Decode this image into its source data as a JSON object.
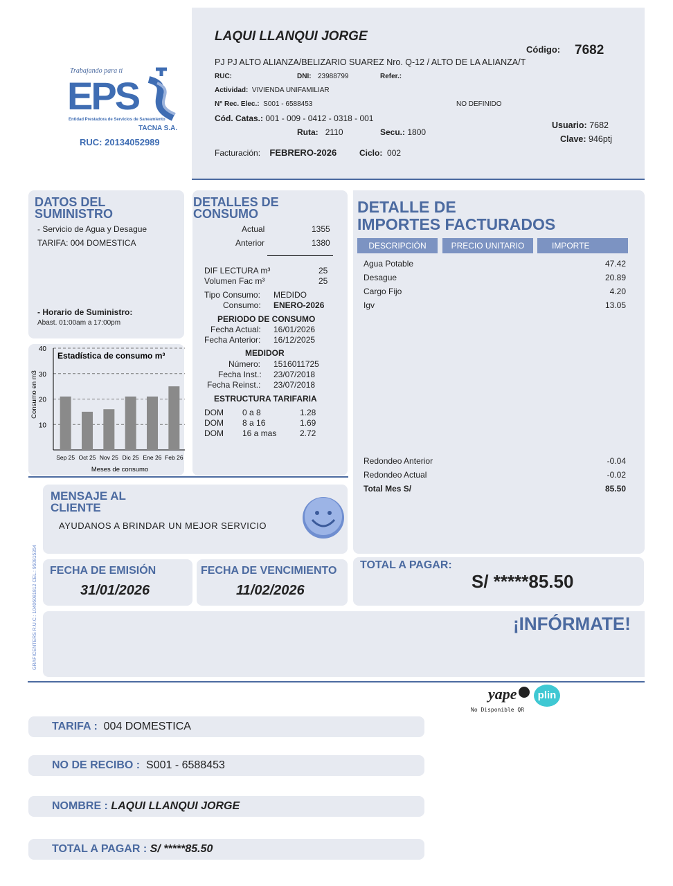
{
  "logo": {
    "tagline": "Trabajando para ti",
    "name": "EPS",
    "subtitle": "Entidad Prestadora de Servicios de Saneamiento",
    "company": "TACNA S.A.",
    "ruc": "RUC: 20134052989"
  },
  "header": {
    "client": "LAQUI LLANQUI JORGE",
    "codigo_label": "Código:",
    "codigo": "7682",
    "address": "PJ PJ ALTO ALIANZA/BELIZARIO SUAREZ Nro. Q-12 / ALTO DE LA ALIANZA/T",
    "ruc_label": "RUC:",
    "dni_label": "DNI:",
    "dni": "23988799",
    "refer_label": "Refer.:",
    "actividad_label": "Actividad:",
    "actividad": "VIVIENDA UNIFAMILIAR",
    "rec_label": "N° Rec. Elec.:",
    "rec": "S001 - 6588453",
    "no_definido": "NO DEFINIDO",
    "catas_label": "Cód. Catas.:",
    "catas": "001 - 009 - 0412 - 0318 - 001",
    "ruta_label": "Ruta:",
    "ruta": "2110",
    "secu_label": "Secu.:",
    "secu": "1800",
    "usuario_label": "Usuario:",
    "usuario": "7682",
    "clave_label": "Clave:",
    "clave": "946ptj",
    "fact_label": "Facturación:",
    "fact": "FEBRERO-2026",
    "ciclo_label": "Ciclo:",
    "ciclo": "002"
  },
  "suministro": {
    "title1": "DATOS DEL",
    "title2": "SUMINISTRO",
    "servicio": "- Servicio de Agua y Desague",
    "tarifa": "TARIFA: 004 DOMESTICA",
    "horario_label": "- Horario de Suministro:",
    "horario": "Abast. 01:00am a 17:00pm"
  },
  "chart_data": {
    "type": "bar",
    "title": "Estadística de consumo m³",
    "xlabel": "Meses de consumo",
    "ylabel": "Consumo en m3",
    "categories": [
      "Sep 25",
      "Oct 25",
      "Nov 25",
      "Dic 25",
      "Ene 26",
      "Feb 26"
    ],
    "values": [
      21,
      15,
      16,
      21,
      21,
      25
    ],
    "ylim": [
      0,
      40
    ],
    "yticks": [
      10,
      20,
      30,
      40
    ],
    "grid": true,
    "bar_color": "#8a8a8a"
  },
  "consumo": {
    "title1": "DETALLES DE",
    "title2": "CONSUMO",
    "actual_label": "Actual",
    "actual": "1355",
    "anterior_label": "Anterior",
    "anterior": "1380",
    "dif_label": "DIF LECTURA m³",
    "dif": "25",
    "vol_label": "Volumen Fac m³",
    "vol": "25",
    "tipo_label": "Tipo Consumo:",
    "tipo": "MEDIDO",
    "consumo_label": "Consumo:",
    "consumo": "ENERO-2026",
    "periodo_title": "PERIODO DE CONSUMO",
    "f_actual_label": "Fecha Actual:",
    "f_actual": "16/01/2026",
    "f_anterior_label": "Fecha Anterior:",
    "f_anterior": "16/12/2025",
    "medidor_title": "MEDIDOR",
    "numero_label": "Número:",
    "numero": "1516011725",
    "inst_label": "Fecha Inst.:",
    "inst": "23/07/2018",
    "reinst_label": "Fecha Reinst.:",
    "reinst": "23/07/2018",
    "estructura_title": "ESTRUCTURA TARIFARIA",
    "tarifas": [
      {
        "c": "DOM",
        "r": "0 a 8",
        "v": "1.28"
      },
      {
        "c": "DOM",
        "r": "8 a 16",
        "v": "1.69"
      },
      {
        "c": "DOM",
        "r": "16 a mas",
        "v": "2.72"
      }
    ]
  },
  "importes": {
    "title1": "DETALLE DE",
    "title2": "IMPORTES FACTURADOS",
    "cols": [
      "DESCRIPCIÓN",
      "PRECIO UNITARIO",
      "IMPORTE"
    ],
    "items": [
      {
        "d": "Agua Potable",
        "v": "47.42"
      },
      {
        "d": "Desague",
        "v": "20.89"
      },
      {
        "d": "Cargo Fijo",
        "v": "4.20"
      },
      {
        "d": "Igv",
        "v": "13.05"
      }
    ],
    "red_ant_label": "Redondeo Anterior",
    "red_ant": "-0.04",
    "red_act_label": "Redondeo Actual",
    "red_act": "-0.02",
    "total_label": "Total Mes S/",
    "total": "85.50"
  },
  "mensaje": {
    "title1": "MENSAJE AL",
    "title2": "CLIENTE",
    "text": "AYUDANOS A BRINDAR UN MEJOR SERVICIO"
  },
  "side_text": "GRAFICENTERS R.U.C.: 10406081812 CEL.: 950815354",
  "emision": {
    "label": "FECHA DE EMISIÓN",
    "value": "31/01/2026"
  },
  "vencimiento": {
    "label": "FECHA DE VENCIMIENTO",
    "value": "11/02/2026"
  },
  "total": {
    "label": "TOTAL A PAGAR:",
    "value": "S/ *****85.50"
  },
  "informate": "¡INFÓRMATE!",
  "pay": {
    "yape": "yape",
    "plin": "plin",
    "qr": "No Disponible QR"
  },
  "stub": [
    {
      "k": "TARIFA :",
      "v": "004 DOMESTICA"
    },
    {
      "k": "NO DE RECIBO :",
      "v": "S001 - 6588453"
    },
    {
      "k": "NOMBRE :",
      "v": "LAQUI LLANQUI JORGE"
    },
    {
      "k": "TOTAL A PAGAR :",
      "v": "S/ *****85.50"
    }
  ]
}
